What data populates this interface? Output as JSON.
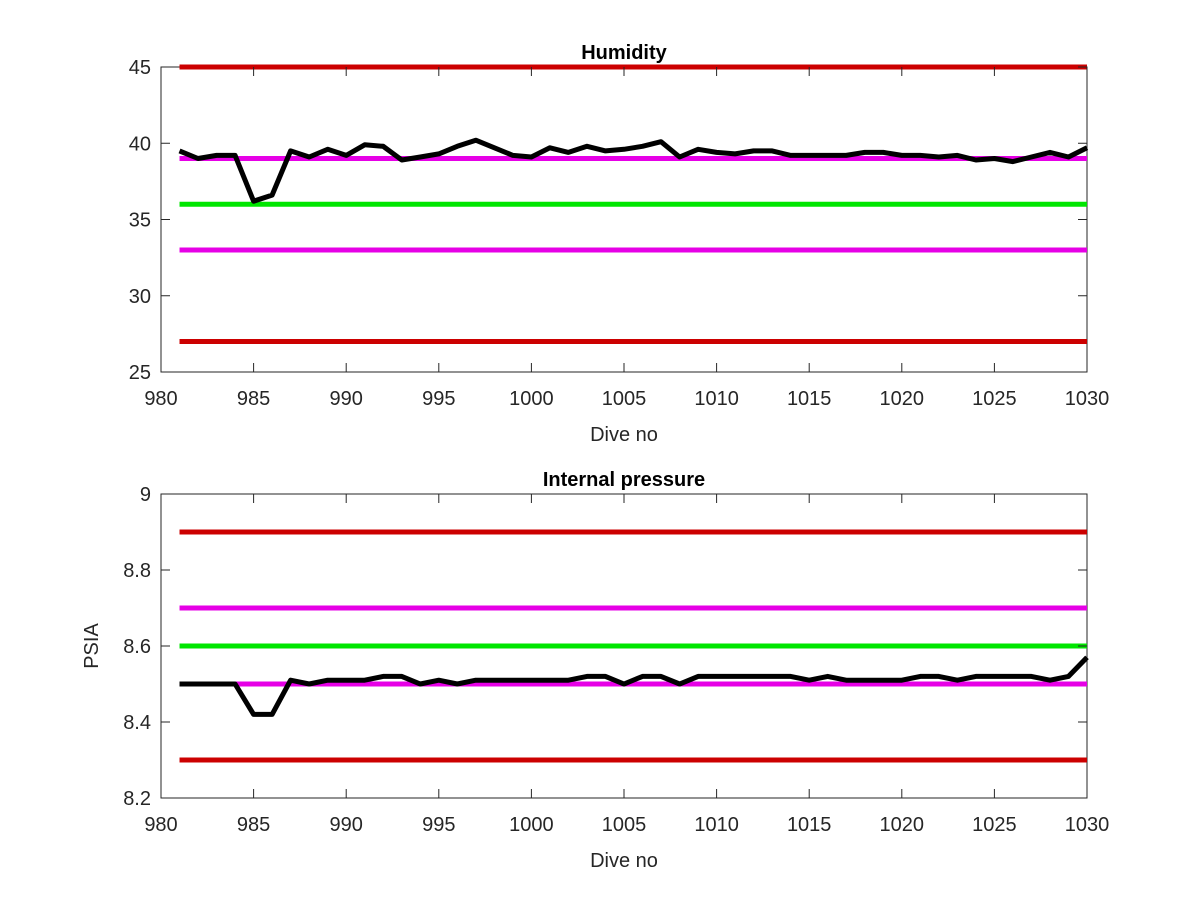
{
  "chart_data": [
    {
      "type": "line",
      "title": "Humidity",
      "xlabel": "Dive no",
      "ylabel": "",
      "xlim": [
        980,
        1030
      ],
      "ylim": [
        25,
        45
      ],
      "xticks": [
        980,
        985,
        990,
        995,
        1000,
        1005,
        1010,
        1015,
        1020,
        1025,
        1030
      ],
      "yticks": [
        25,
        30,
        35,
        40,
        45
      ],
      "grid": false,
      "reference_lines": [
        {
          "y": 45,
          "color": "#cc0000"
        },
        {
          "y": 39,
          "color": "#e600e6"
        },
        {
          "y": 36,
          "color": "#00e600"
        },
        {
          "y": 33,
          "color": "#e600e6"
        },
        {
          "y": 27,
          "color": "#cc0000"
        }
      ],
      "series": [
        {
          "color": "#000000",
          "x": [
            981,
            982,
            983,
            984,
            985,
            986,
            987,
            988,
            989,
            990,
            991,
            992,
            993,
            994,
            995,
            996,
            997,
            998,
            999,
            1000,
            1001,
            1002,
            1003,
            1004,
            1005,
            1006,
            1007,
            1008,
            1009,
            1010,
            1011,
            1012,
            1013,
            1014,
            1015,
            1016,
            1017,
            1018,
            1019,
            1020,
            1021,
            1022,
            1023,
            1024,
            1025,
            1026,
            1027,
            1028,
            1029,
            1030
          ],
          "y": [
            39.5,
            39.0,
            39.2,
            39.2,
            36.2,
            36.6,
            39.5,
            39.1,
            39.6,
            39.2,
            39.9,
            39.8,
            38.9,
            39.1,
            39.3,
            39.8,
            40.2,
            39.7,
            39.2,
            39.1,
            39.7,
            39.4,
            39.8,
            39.5,
            39.6,
            39.8,
            40.1,
            39.1,
            39.6,
            39.4,
            39.3,
            39.5,
            39.5,
            39.2,
            39.2,
            39.2,
            39.2,
            39.4,
            39.4,
            39.2,
            39.2,
            39.1,
            39.2,
            38.9,
            39.0,
            38.8,
            39.1,
            39.4,
            39.1,
            39.7
          ]
        }
      ]
    },
    {
      "type": "line",
      "title": "Internal pressure",
      "xlabel": "Dive no",
      "ylabel": "PSIA",
      "xlim": [
        980,
        1030
      ],
      "ylim": [
        8.2,
        9
      ],
      "xticks": [
        980,
        985,
        990,
        995,
        1000,
        1005,
        1010,
        1015,
        1020,
        1025,
        1030
      ],
      "yticks": [
        8.2,
        8.4,
        8.6,
        8.8,
        9
      ],
      "grid": false,
      "reference_lines": [
        {
          "y": 8.9,
          "color": "#cc0000"
        },
        {
          "y": 8.7,
          "color": "#e600e6"
        },
        {
          "y": 8.6,
          "color": "#00e600"
        },
        {
          "y": 8.5,
          "color": "#e600e6"
        },
        {
          "y": 8.3,
          "color": "#cc0000"
        }
      ],
      "series": [
        {
          "color": "#000000",
          "x": [
            981,
            982,
            983,
            984,
            985,
            986,
            987,
            988,
            989,
            990,
            991,
            992,
            993,
            994,
            995,
            996,
            997,
            998,
            999,
            1000,
            1001,
            1002,
            1003,
            1004,
            1005,
            1006,
            1007,
            1008,
            1009,
            1010,
            1011,
            1012,
            1013,
            1014,
            1015,
            1016,
            1017,
            1018,
            1019,
            1020,
            1021,
            1022,
            1023,
            1024,
            1025,
            1026,
            1027,
            1028,
            1029,
            1030
          ],
          "y": [
            8.5,
            8.5,
            8.5,
            8.5,
            8.42,
            8.42,
            8.51,
            8.5,
            8.51,
            8.51,
            8.51,
            8.52,
            8.52,
            8.5,
            8.51,
            8.5,
            8.51,
            8.51,
            8.51,
            8.51,
            8.51,
            8.51,
            8.52,
            8.52,
            8.5,
            8.52,
            8.52,
            8.5,
            8.52,
            8.52,
            8.52,
            8.52,
            8.52,
            8.52,
            8.51,
            8.52,
            8.51,
            8.51,
            8.51,
            8.51,
            8.52,
            8.52,
            8.51,
            8.52,
            8.52,
            8.52,
            8.52,
            8.51,
            8.52,
            8.57
          ]
        }
      ]
    }
  ]
}
